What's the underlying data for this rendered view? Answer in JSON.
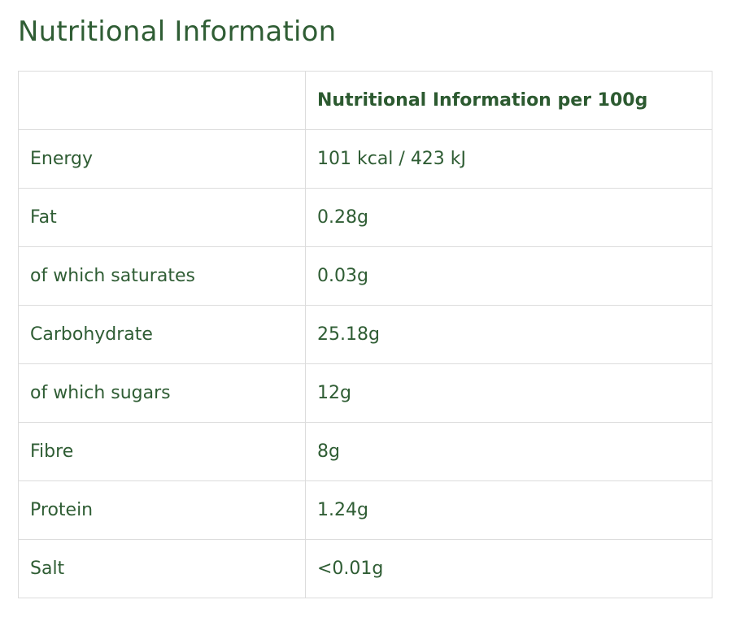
{
  "page": {
    "title": "Nutritional Information"
  },
  "table": {
    "header": {
      "nutrient": "",
      "value": "Nutritional Information per 100g"
    },
    "rows": [
      {
        "nutrient": "Energy",
        "value": "101 kcal / 423 kJ"
      },
      {
        "nutrient": "Fat",
        "value": "0.28g"
      },
      {
        "nutrient": "of which saturates",
        "value": "0.03g"
      },
      {
        "nutrient": "Carbohydrate",
        "value": "25.18g"
      },
      {
        "nutrient": "of which sugars",
        "value": "12g"
      },
      {
        "nutrient": "Fibre",
        "value": "8g"
      },
      {
        "nutrient": "Protein",
        "value": "1.24g"
      },
      {
        "nutrient": "Salt",
        "value": "<0.01g"
      }
    ]
  },
  "colors": {
    "text": "#2f5d34",
    "border": "#dcdcdc"
  }
}
